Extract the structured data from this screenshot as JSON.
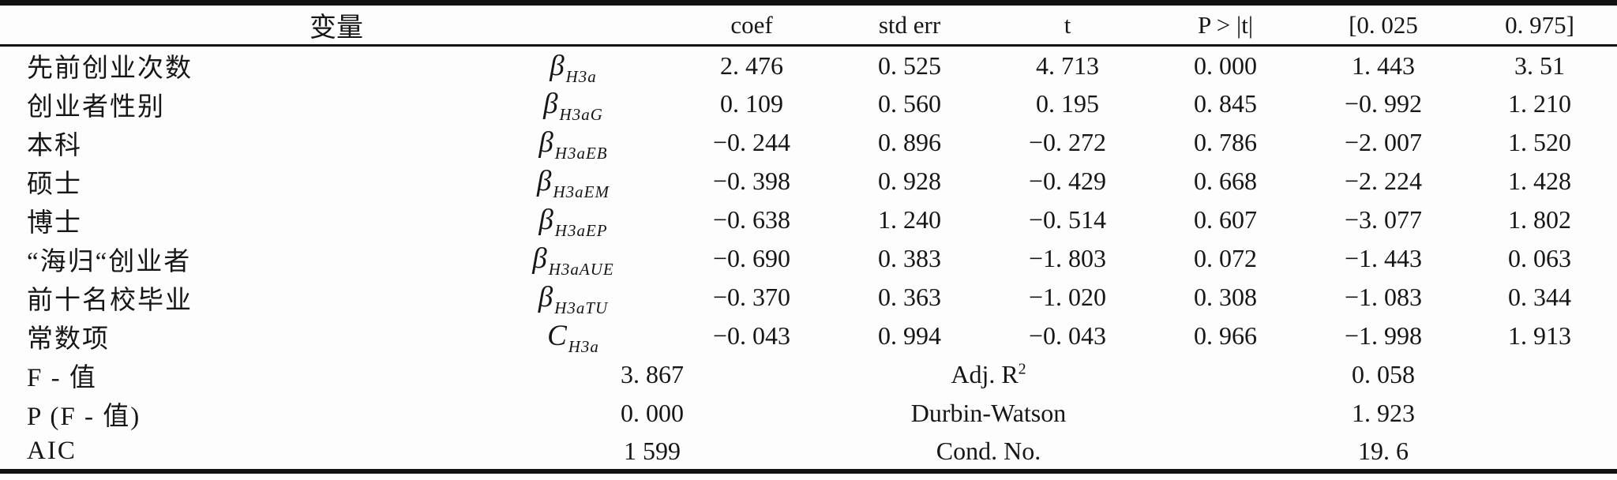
{
  "table": {
    "header": {
      "variable": "变量",
      "coef": "coef",
      "std_err": "std err",
      "t": "t",
      "p": "P > |t|",
      "ci_low": "[0. 025",
      "ci_high": "0. 975]"
    },
    "rows": [
      {
        "name": "先前创业次数",
        "symbol_base": "β",
        "symbol_sub": "H3a",
        "coef": "2. 476",
        "std_err": "0. 525",
        "t": "4. 713",
        "p": "0. 000",
        "ci_low": "1. 443",
        "ci_high": "3. 51"
      },
      {
        "name": "创业者性别",
        "symbol_base": "β",
        "symbol_sub": "H3aG",
        "coef": "0. 109",
        "std_err": "0. 560",
        "t": "0. 195",
        "p": "0. 845",
        "ci_low": "−0. 992",
        "ci_high": "1. 210"
      },
      {
        "name": "本科",
        "symbol_base": "β",
        "symbol_sub": "H3aEB",
        "coef": "−0. 244",
        "std_err": "0. 896",
        "t": "−0. 272",
        "p": "0. 786",
        "ci_low": "−2. 007",
        "ci_high": "1. 520"
      },
      {
        "name": "硕士",
        "symbol_base": "β",
        "symbol_sub": "H3aEM",
        "coef": "−0. 398",
        "std_err": "0. 928",
        "t": "−0. 429",
        "p": "0. 668",
        "ci_low": "−2. 224",
        "ci_high": "1. 428"
      },
      {
        "name": "博士",
        "symbol_base": "β",
        "symbol_sub": "H3aEP",
        "coef": "−0. 638",
        "std_err": "1. 240",
        "t": "−0. 514",
        "p": "0. 607",
        "ci_low": "−3. 077",
        "ci_high": "1. 802"
      },
      {
        "name": "“海归“创业者",
        "symbol_base": "β",
        "symbol_sub": "H3aAUE",
        "coef": "−0. 690",
        "std_err": "0. 383",
        "t": "−1. 803",
        "p": "0. 072",
        "ci_low": "−1. 443",
        "ci_high": "0. 063"
      },
      {
        "name": "前十名校毕业",
        "symbol_base": "β",
        "symbol_sub": "H3aTU",
        "coef": "−0. 370",
        "std_err": "0. 363",
        "t": "−1. 020",
        "p": "0. 308",
        "ci_low": "−1. 083",
        "ci_high": "0. 344"
      },
      {
        "name": "常数项",
        "symbol_base": "C",
        "symbol_sub": "H3a",
        "coef": "−0. 043",
        "std_err": "0. 994",
        "t": "−0. 043",
        "p": "0. 966",
        "ci_low": "−1. 998",
        "ci_high": "1. 913"
      }
    ],
    "summary": [
      {
        "label": "F - 值",
        "value": "3. 867",
        "stat_label": "Adj. R",
        "stat_sup": "2",
        "stat_value": "0. 058"
      },
      {
        "label": "P (F - 值)",
        "value": "0. 000",
        "stat_label": "Durbin-Watson",
        "stat_sup": "",
        "stat_value": "1. 923"
      },
      {
        "label": "AIC",
        "value": "1 599",
        "stat_label": "Cond. No.",
        "stat_sup": "",
        "stat_value": "19. 6"
      }
    ]
  }
}
